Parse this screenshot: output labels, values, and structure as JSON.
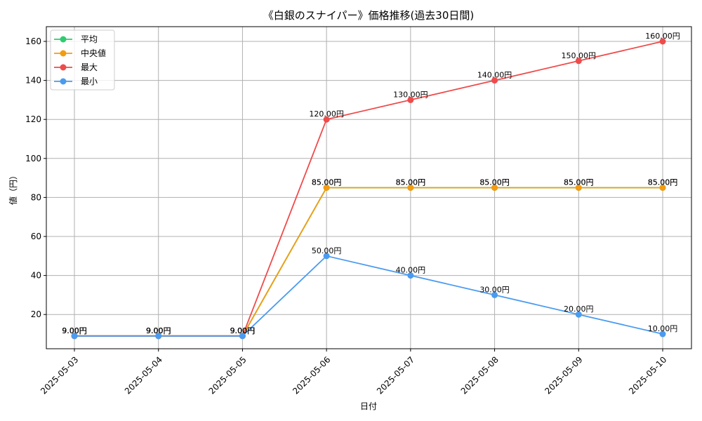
{
  "chart_data": {
    "type": "line",
    "title": "《白銀のスナイパー》価格推移(過去30日間)",
    "xlabel": "日付",
    "ylabel": "値（円）",
    "categories": [
      "2025-05-03",
      "2025-05-04",
      "2025-05-05",
      "2025-05-06",
      "2025-05-07",
      "2025-05-08",
      "2025-05-09",
      "2025-05-10"
    ],
    "yticks": [
      20,
      40,
      60,
      80,
      100,
      120,
      140,
      160
    ],
    "ylim": [
      2.45,
      167.55
    ],
    "grid": true,
    "legend_position": "top-left",
    "value_suffix": "円",
    "series": [
      {
        "name": "平均",
        "color": "#2ecc71",
        "values": [
          9,
          9,
          9,
          85,
          85,
          85,
          85,
          85
        ],
        "labels": [
          "9.00円",
          "9.00円",
          "9.00円",
          "85.00円",
          "85.00円",
          "85.00円",
          "85.00円",
          "85.00円"
        ]
      },
      {
        "name": "中央値",
        "color": "#f39c12",
        "values": [
          9,
          9,
          9,
          85,
          85,
          85,
          85,
          85
        ],
        "labels": [
          "9.00円",
          "9.00円",
          "9.00円",
          "85.00円",
          "85.00円",
          "85.00円",
          "85.00円",
          "85.00円"
        ]
      },
      {
        "name": "最大",
        "color": "#ef4b4b",
        "values": [
          9,
          9,
          9,
          120,
          130,
          140,
          150,
          160
        ],
        "labels": [
          "9.00円",
          "9.00円",
          "9.00円",
          "120.00円",
          "130.00円",
          "140.00円",
          "150.00円",
          "160.00円"
        ]
      },
      {
        "name": "最小",
        "color": "#4a9bf0",
        "values": [
          9,
          9,
          9,
          50,
          40,
          30,
          20,
          10
        ],
        "labels": [
          "9.00円",
          "9.00円",
          "9.00円",
          "50.00円",
          "40.00円",
          "30.00円",
          "20.00円",
          "10.00円"
        ]
      }
    ]
  }
}
